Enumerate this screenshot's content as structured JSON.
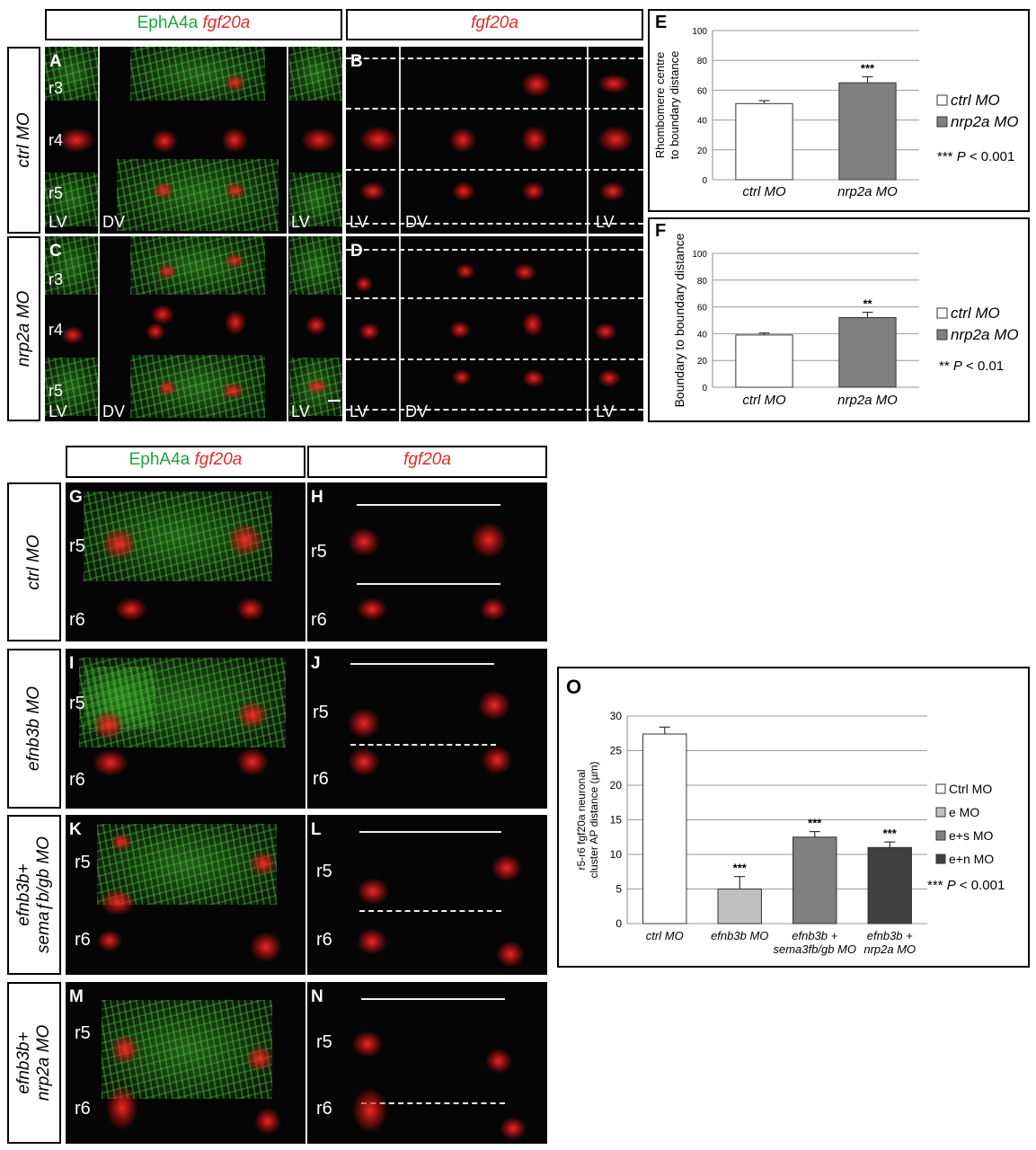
{
  "headers": {
    "top_left": {
      "green": "EphA4a",
      "red": "fgf20a"
    },
    "top_right": {
      "red": "fgf20a"
    },
    "bottom_left": {
      "green": "EphA4a",
      "red": "fgf20a"
    },
    "bottom_right": {
      "red": "fgf20a"
    }
  },
  "row_labels": {
    "ctrl_top": "ctrl MO",
    "nrp2a": "nrp2a MO",
    "ctrl_bottom": "ctrl MO",
    "efnb3b": "efnb3b MO",
    "efnb3b_sema": "efnb3b+\nsemaƒb/gb MO",
    "efnb3b_nrp2a": "efnb3b+\nnrp2a MO"
  },
  "panels": {
    "A": {
      "letter": "A",
      "rhombomeres": [
        "r3",
        "r4",
        "r5"
      ],
      "views": [
        "LV",
        "DV",
        "LV"
      ]
    },
    "B": {
      "letter": "B",
      "views": [
        "LV",
        "DV",
        "LV"
      ]
    },
    "C": {
      "letter": "C",
      "rhombomeres": [
        "r3",
        "r4",
        "r5"
      ],
      "views": [
        "LV",
        "DV",
        "LV"
      ]
    },
    "D": {
      "letter": "D",
      "views": [
        "LV",
        "DV",
        "LV"
      ]
    },
    "G": {
      "letter": "G",
      "rhombomeres": [
        "r5",
        "r6"
      ]
    },
    "H": {
      "letter": "H",
      "rhombomeres": [
        "r5",
        "r6"
      ]
    },
    "I": {
      "letter": "I",
      "rhombomeres": [
        "r5",
        "r6"
      ]
    },
    "J": {
      "letter": "J",
      "rhombomeres": [
        "r5",
        "r6"
      ]
    },
    "K": {
      "letter": "K",
      "rhombomeres": [
        "r5",
        "r6"
      ]
    },
    "L": {
      "letter": "L",
      "rhombomeres": [
        "r5",
        "r6"
      ]
    },
    "M": {
      "letter": "M",
      "rhombomeres": [
        "r5",
        "r6"
      ]
    },
    "N": {
      "letter": "N",
      "rhombomeres": [
        "r5",
        "r6"
      ]
    }
  },
  "chart_data": [
    {
      "panel": "E",
      "type": "bar",
      "categories": [
        "ctrl MO",
        "nrp2a MO"
      ],
      "values": [
        51,
        65
      ],
      "errors": [
        2,
        4
      ],
      "significance": [
        "",
        "***"
      ],
      "ylabel": "Rhombomere centre to boundary distance",
      "ylim": [
        0,
        100
      ],
      "yticks": [
        0,
        20,
        40,
        60,
        80,
        100
      ],
      "grid": true,
      "colors": [
        "#ffffff",
        "#808080"
      ],
      "legend": [
        "ctrl MO",
        "nrp2a MO"
      ],
      "pvalue_note": {
        "stars": "***",
        "p": "P",
        "rest": " < 0.001"
      }
    },
    {
      "panel": "F",
      "type": "bar",
      "categories": [
        "ctrl MO",
        "nrp2a MO"
      ],
      "values": [
        39,
        52
      ],
      "errors": [
        1.5,
        4
      ],
      "significance": [
        "",
        "**"
      ],
      "ylabel": "Boundary to boundary distance",
      "ylim": [
        0,
        100
      ],
      "yticks": [
        0,
        20,
        40,
        60,
        80,
        100
      ],
      "grid": true,
      "colors": [
        "#ffffff",
        "#808080"
      ],
      "legend": [
        "ctrl MO",
        "nrp2a MO"
      ],
      "pvalue_note": {
        "stars": "**",
        "p": "P",
        "rest": " < 0.01"
      }
    },
    {
      "panel": "O",
      "type": "bar",
      "categories": [
        "ctrl MO",
        "efnb3b MO",
        "efnb3b +\nsema3fb/gb MO",
        "efnb3b +\nnrp2a MO"
      ],
      "values": [
        27.4,
        5,
        12.5,
        11
      ],
      "errors": [
        1,
        1.8,
        0.8,
        0.8
      ],
      "significance": [
        "",
        "***",
        "***",
        "***"
      ],
      "ylabel": "r5-r6 fgf20a neuronal cluster AP distance (µm)",
      "ylim": [
        0,
        30
      ],
      "yticks": [
        0,
        5,
        10,
        15,
        20,
        25,
        30
      ],
      "grid": true,
      "colors": [
        "#ffffff",
        "#c0c0c0",
        "#808080",
        "#404040"
      ],
      "legend": [
        "Ctrl MO",
        "e MO",
        "e+s MO",
        "e+n MO"
      ],
      "pvalue_note": {
        "stars": "***",
        "p": "P",
        "rest": " < 0.001"
      }
    }
  ]
}
